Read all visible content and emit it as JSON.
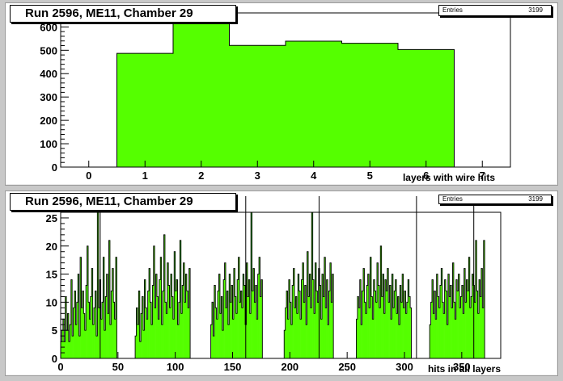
{
  "chart_data": [
    {
      "type": "bar",
      "title": "Run 2596, ME11, Chamber 29",
      "xlabel": "layers with wire hits",
      "ylabel": "",
      "xlim": [
        -0.5,
        7.5
      ],
      "ylim": [
        0,
        660
      ],
      "xticks": [
        "0",
        "1",
        "2",
        "3",
        "4",
        "5",
        "6",
        "7"
      ],
      "yticks": [
        "0",
        "100",
        "200",
        "300",
        "400",
        "500",
        "600"
      ],
      "bins": [
        1,
        2,
        3,
        4,
        5,
        6
      ],
      "values": [
        487,
        618,
        521,
        539,
        530,
        503
      ],
      "bar_color": "#55ff00",
      "stats": {
        "entries_label": "Entries",
        "entries_value": "3199"
      }
    },
    {
      "type": "bar",
      "title": "Run 2596, ME11, Chamber 29",
      "xlabel": "hits in all layers",
      "ylabel": "",
      "xlim": [
        0,
        384
      ],
      "ylim": [
        0,
        26
      ],
      "xticks": [
        "0",
        "50",
        "100",
        "150",
        "200",
        "250",
        "300",
        "350"
      ],
      "yticks": [
        "0",
        "5",
        "10",
        "15",
        "20",
        "25"
      ],
      "bin_width": 1,
      "bar_color": "#55ff00",
      "stats": {
        "entries_label": "Entries",
        "entries_value": "3199"
      },
      "segments": [
        {
          "start": 0,
          "values": [
            3,
            5,
            7,
            3,
            11,
            5,
            8,
            3,
            6,
            14,
            4,
            9,
            12,
            6,
            10,
            15,
            4,
            18,
            9,
            12,
            8,
            5,
            13,
            20,
            10,
            7,
            11,
            16,
            6,
            9,
            12,
            4,
            26,
            9,
            14,
            7,
            10,
            18,
            5,
            11,
            15,
            8,
            21,
            6,
            12,
            16,
            10,
            7,
            18
          ]
        },
        {
          "start": 65,
          "values": [
            4,
            9,
            6,
            12,
            3,
            8,
            11,
            5,
            14,
            9,
            7,
            12,
            16,
            10,
            6,
            13,
            20,
            9,
            15,
            11,
            7,
            14,
            18,
            6,
            12,
            22,
            10,
            8,
            17,
            13,
            9,
            15,
            11,
            7,
            19,
            12,
            14,
            6,
            10,
            21,
            8,
            13,
            17,
            10,
            15,
            12,
            9,
            16
          ]
        },
        {
          "start": 131,
          "values": [
            6,
            10,
            4,
            13,
            9,
            7,
            12,
            15,
            8,
            11,
            5,
            14,
            17,
            9,
            12,
            6,
            15,
            10,
            13,
            7,
            16,
            11,
            8,
            14,
            18,
            10,
            12,
            9,
            15,
            13,
            6,
            17,
            11,
            14,
            8,
            26,
            12,
            16,
            10,
            13,
            7,
            15,
            18,
            11,
            14
          ]
        },
        {
          "start": 195,
          "values": [
            5,
            9,
            12,
            7,
            14,
            10,
            6,
            13,
            16,
            9,
            11,
            8,
            15,
            12,
            7,
            14,
            17,
            10,
            13,
            6,
            19,
            11,
            15,
            9,
            26,
            14,
            8,
            17,
            12,
            10,
            16,
            13,
            7,
            15,
            11,
            18,
            9,
            14,
            6,
            12,
            17,
            10,
            15
          ]
        },
        {
          "start": 258,
          "values": [
            7,
            11,
            9,
            14,
            6,
            12,
            16,
            10,
            8,
            13,
            15,
            9,
            18,
            11,
            7,
            14,
            12,
            10,
            17,
            13,
            9,
            20,
            11,
            15,
            8,
            14,
            12,
            16,
            10,
            13,
            7,
            15,
            9,
            12,
            14,
            8,
            11,
            6,
            13,
            10,
            15,
            9,
            12,
            8,
            10,
            14,
            11,
            9
          ]
        },
        {
          "start": 322,
          "values": [
            6,
            10,
            14,
            8,
            12,
            7,
            15,
            11,
            9,
            13,
            16,
            10,
            8,
            14,
            12,
            6,
            15,
            11,
            13,
            9,
            17,
            10,
            7,
            14,
            12,
            15,
            9,
            11,
            13,
            8,
            16,
            10,
            14,
            12,
            18,
            9,
            11,
            15,
            13,
            10,
            21,
            12,
            8,
            14,
            11,
            16,
            9,
            21
          ]
        }
      ],
      "spikes": [
        34,
        161,
        225,
        310,
        360
      ]
    }
  ]
}
